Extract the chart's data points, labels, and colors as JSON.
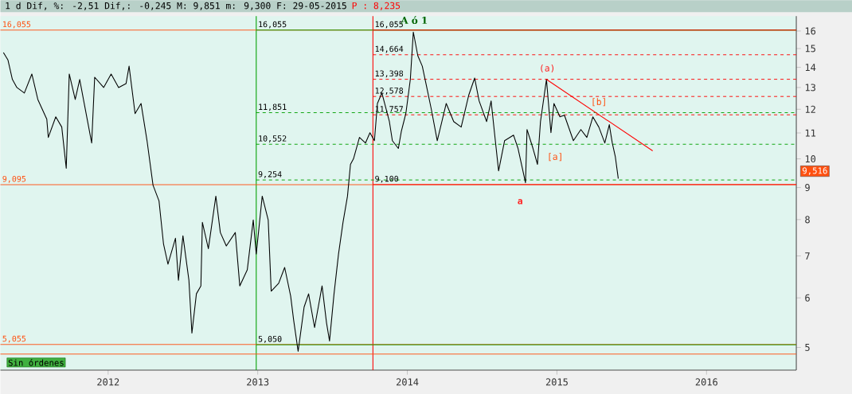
{
  "chart_data": {
    "type": "line",
    "title": "1 d Dif, %: -2,51 Dif,: -0,245 M: 9,851 m: 9,300 F: 29-05-2015",
    "subtitle": "P : 8,235",
    "log": "y",
    "xlim": [
      2011.28,
      2016.6
    ],
    "xticks": [
      2012,
      2013,
      2014,
      2015,
      2016
    ],
    "ylim": [
      4.6,
      16.9
    ],
    "yticks": [
      5,
      6,
      7,
      8,
      9,
      10,
      11,
      12,
      13,
      14,
      15,
      16
    ],
    "series": [
      {
        "color": "#000000",
        "x": [
          2011.3,
          2011.33,
          2011.36,
          2011.39,
          2011.44,
          2011.49,
          2011.53,
          2011.59,
          2011.6,
          2011.65,
          2011.69,
          2011.72,
          2011.74,
          2011.78,
          2011.81,
          2011.84,
          2011.89,
          2011.91,
          2011.97,
          2012.02,
          2012.07,
          2012.12,
          2012.14,
          2012.18,
          2012.22,
          2012.26,
          2012.3,
          2012.34,
          2012.37,
          2012.4,
          2012.45,
          2012.47,
          2012.5,
          2012.54,
          2012.56,
          2012.59,
          2012.62,
          2012.63,
          2012.67,
          2012.72,
          2012.75,
          2012.79,
          2012.85,
          2012.88,
          2012.93,
          2012.97,
          2012.99,
          2013.03,
          2013.07,
          2013.09,
          2013.14,
          2013.18,
          2013.22,
          2013.24,
          2013.27,
          2013.31,
          2013.34,
          2013.38,
          2013.43,
          2013.46,
          2013.48,
          2013.51,
          2013.54,
          2013.57,
          2013.6,
          2013.62,
          2013.64,
          2013.68,
          2013.72,
          2013.75,
          2013.78,
          2013.8,
          2013.83,
          2013.88,
          2013.9,
          2013.94,
          2013.96,
          2013.99,
          2014.02,
          2014.04,
          2014.07,
          2014.1,
          2014.13,
          2014.16,
          2014.2,
          2014.26,
          2014.31,
          2014.36,
          2014.41,
          2014.45,
          2014.48,
          2014.53,
          2014.56,
          2014.59,
          2014.61,
          2014.65,
          2014.71,
          2014.74,
          2014.79,
          2014.8,
          2014.84,
          2014.87,
          2014.89,
          2014.93,
          2014.96,
          2014.98,
          2015.02,
          2015.05,
          2015.11,
          2015.16,
          2015.2,
          2015.24,
          2015.28,
          2015.32,
          2015.35,
          2015.37,
          2015.39,
          2015.41
        ],
        "values": [
          14.78,
          14.39,
          13.39,
          13.0,
          12.74,
          13.66,
          12.44,
          11.57,
          10.82,
          11.67,
          11.24,
          9.66,
          13.66,
          12.44,
          13.39,
          12.26,
          10.6,
          13.5,
          13.0,
          13.66,
          13.0,
          13.19,
          14.06,
          11.81,
          12.26,
          10.69,
          9.08,
          8.57,
          7.32,
          6.79,
          7.47,
          6.4,
          7.54,
          6.4,
          5.27,
          6.09,
          6.27,
          7.92,
          7.19,
          8.72,
          7.63,
          7.26,
          7.63,
          6.27,
          6.65,
          7.99,
          7.05,
          8.72,
          7.99,
          6.15,
          6.33,
          6.71,
          6.04,
          5.53,
          4.93,
          5.8,
          6.09,
          5.38,
          6.27,
          5.47,
          5.12,
          6.09,
          7.05,
          7.92,
          8.72,
          9.8,
          10.0,
          10.82,
          10.6,
          11.01,
          10.69,
          12.26,
          12.74,
          11.47,
          10.69,
          10.39,
          11.07,
          11.81,
          13.39,
          15.94,
          14.61,
          14.06,
          13.0,
          12.01,
          10.69,
          12.26,
          11.47,
          11.24,
          12.63,
          13.46,
          12.37,
          11.47,
          12.37,
          10.6,
          9.57,
          10.69,
          10.91,
          10.39,
          9.16,
          11.14,
          10.39,
          9.8,
          11.47,
          13.39,
          11.01,
          12.26,
          11.67,
          11.74,
          10.69,
          11.14,
          10.82,
          11.67,
          11.24,
          10.6,
          11.34,
          10.6,
          10.09,
          9.3
        ]
      },
      {
        "color": "#ff0000",
        "x": [
          2014.93,
          2015.64
        ],
        "values": [
          13.39,
          10.3
        ]
      }
    ],
    "ref_lines": [
      {
        "axis": "x",
        "value": 2012.99,
        "color": "#00a000"
      },
      {
        "axis": "x",
        "value": 2013.77,
        "color": "#ff0000"
      },
      {
        "axis": "y",
        "value": 16.055,
        "label": "16,055",
        "color": "#ff5010"
      },
      {
        "axis": "y",
        "value": 9.095,
        "label": "9,095",
        "color": "#ff5010"
      },
      {
        "axis": "y",
        "value": 5.055,
        "label": "5,055",
        "color": "#ff5010"
      },
      {
        "axis": "y",
        "value": 4.88,
        "color": "#ff5010"
      },
      {
        "axis": "y",
        "value": 16.055,
        "label": "16,055",
        "color": "#00a000"
      },
      {
        "axis": "y",
        "value": 11.851,
        "label": "11,851",
        "color": "#00a000",
        "line_style": "dashed"
      },
      {
        "axis": "y",
        "value": 10.552,
        "label": "10,552",
        "color": "#00a000",
        "line_style": "dashed"
      },
      {
        "axis": "y",
        "value": 9.254,
        "label": "9,254",
        "color": "#00a000",
        "line_style": "dashed"
      },
      {
        "axis": "y",
        "value": 5.05,
        "label": "5,050",
        "color": "#00a000"
      },
      {
        "axis": "y",
        "value": 16.055,
        "label": "16,055",
        "color": "#ff0000"
      },
      {
        "axis": "y",
        "value": 14.664,
        "label": "14,664",
        "color": "#ff0000",
        "line_style": "dashed"
      },
      {
        "axis": "y",
        "value": 13.398,
        "label": "13,398",
        "color": "#ff0000",
        "line_style": "dashed"
      },
      {
        "axis": "y",
        "value": 12.578,
        "label": "12,578",
        "color": "#ff0000",
        "line_style": "dashed"
      },
      {
        "axis": "y",
        "value": 11.757,
        "label": "11,757",
        "color": "#ff0000",
        "line_style": "dashed"
      },
      {
        "axis": "y",
        "value": 9.1,
        "label": "9,100",
        "color": "#ff0000"
      }
    ],
    "annotations": [
      "A ó 1",
      "(a)",
      "[b]",
      "[a]",
      "a",
      "9,516",
      "Sin órdenes"
    ]
  }
}
